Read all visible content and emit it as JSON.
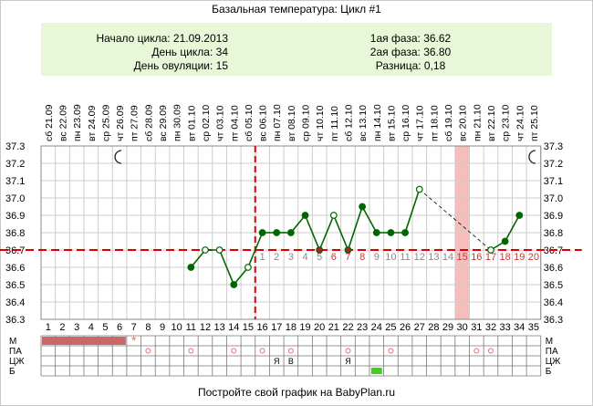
{
  "title": "Базальная температура: Цикл #1",
  "info": {
    "left": [
      "Начало цикла: 21.09.2013",
      "День цикла: 34",
      "День овуляции: 15"
    ],
    "right": [
      "1ая фаза: 36.62",
      "2ая фаза: 36.80",
      "Разница: 0,18"
    ]
  },
  "footer": "Постройте свой график на BabyPlan.ru",
  "colors": {
    "grid": "#cccccc",
    "line": "#006600",
    "point": "#006600",
    "ovulation_line": "#dd0000",
    "coverline": "#dd0000",
    "period_bar": "#c8686a",
    "highlight": "#f7bcbc",
    "phase_numbers": "#c0393b",
    "marker_pink": "#e07070",
    "marker_green": "#44cc22"
  },
  "icons": {
    "moon_left": "crescent-moon-icon",
    "moon_right": "crescent-moon-icon"
  },
  "chart_data": {
    "type": "line",
    "x_dates": [
      {
        "dow": "сб",
        "date": "21.09"
      },
      {
        "dow": "вс",
        "date": "22.09"
      },
      {
        "dow": "пн",
        "date": "23.09"
      },
      {
        "dow": "вт",
        "date": "24.09"
      },
      {
        "dow": "ср",
        "date": "25.09"
      },
      {
        "dow": "чт",
        "date": "26.09"
      },
      {
        "dow": "пт",
        "date": "27.09"
      },
      {
        "dow": "сб",
        "date": "28.09"
      },
      {
        "dow": "вс",
        "date": "29.09"
      },
      {
        "dow": "пн",
        "date": "30.09"
      },
      {
        "dow": "вт",
        "date": "01.10"
      },
      {
        "dow": "ср",
        "date": "02.10"
      },
      {
        "dow": "чт",
        "date": "03.10"
      },
      {
        "dow": "пт",
        "date": "04.10"
      },
      {
        "dow": "сб",
        "date": "05.10"
      },
      {
        "dow": "вс",
        "date": "06.10"
      },
      {
        "dow": "пн",
        "date": "07.10"
      },
      {
        "dow": "вт",
        "date": "08.10"
      },
      {
        "dow": "ср",
        "date": "09.10"
      },
      {
        "dow": "чт",
        "date": "10.10"
      },
      {
        "dow": "пт",
        "date": "11.10"
      },
      {
        "dow": "сб",
        "date": "12.10"
      },
      {
        "dow": "вс",
        "date": "13.10"
      },
      {
        "dow": "пн",
        "date": "14.10"
      },
      {
        "dow": "вт",
        "date": "15.10"
      },
      {
        "dow": "ср",
        "date": "16.10"
      },
      {
        "dow": "чт",
        "date": "17.10"
      },
      {
        "dow": "пт",
        "date": "18.10"
      },
      {
        "dow": "сб",
        "date": "19.10"
      },
      {
        "dow": "вс",
        "date": "20.10"
      },
      {
        "dow": "пн",
        "date": "21.10"
      },
      {
        "dow": "вт",
        "date": "22.10"
      },
      {
        "dow": "ср",
        "date": "23.10"
      },
      {
        "dow": "чт",
        "date": "24.10"
      },
      {
        "dow": "пт",
        "date": "25.10"
      }
    ],
    "cycle_days": [
      1,
      2,
      3,
      4,
      5,
      6,
      7,
      8,
      9,
      10,
      11,
      12,
      13,
      14,
      15,
      16,
      17,
      18,
      19,
      20,
      21,
      22,
      23,
      24,
      25,
      26,
      27,
      28,
      29,
      30,
      31,
      32,
      33,
      34,
      35
    ],
    "ylim": [
      36.3,
      37.3
    ],
    "y_ticks": [
      "36.3",
      "36.4",
      "36.5",
      "36.6",
      "36.7",
      "36.8",
      "36.9",
      "37.0",
      "37.1",
      "37.2",
      "37.3"
    ],
    "series": [
      {
        "points": [
          {
            "day": 11,
            "temp": 36.6,
            "style": "filled"
          },
          {
            "day": 12,
            "temp": 36.7,
            "style": "hollow"
          },
          {
            "day": 13,
            "temp": 36.7,
            "style": "hollow"
          },
          {
            "day": 14,
            "temp": 36.5,
            "style": "filled"
          },
          {
            "day": 15,
            "temp": 36.6,
            "style": "hollow"
          },
          {
            "day": 16,
            "temp": 36.8,
            "style": "filled"
          },
          {
            "day": 17,
            "temp": 36.8,
            "style": "filled"
          },
          {
            "day": 18,
            "temp": 36.8,
            "style": "filled"
          },
          {
            "day": 19,
            "temp": 36.9,
            "style": "filled"
          },
          {
            "day": 20,
            "temp": 36.7,
            "style": "red"
          },
          {
            "day": 21,
            "temp": 36.9,
            "style": "hollow"
          },
          {
            "day": 22,
            "temp": 36.7,
            "style": "red"
          },
          {
            "day": 23,
            "temp": 36.95,
            "style": "filled"
          },
          {
            "day": 24,
            "temp": 36.8,
            "style": "filled"
          },
          {
            "day": 25,
            "temp": 36.8,
            "style": "filled"
          },
          {
            "day": 26,
            "temp": 36.8,
            "style": "filled"
          },
          {
            "day": 27,
            "temp": 37.05,
            "style": "hollow"
          },
          {
            "day": 32,
            "temp": 36.7,
            "style": "hollow"
          },
          {
            "day": 33,
            "temp": 36.75,
            "style": "filled"
          },
          {
            "day": 34,
            "temp": 36.9,
            "style": "filled"
          }
        ]
      }
    ],
    "dashed_gap": {
      "from_day": 27,
      "to_day": 32
    },
    "coverline": 36.7,
    "ovulation_day": 15,
    "highlight_day": 30,
    "phase2_numbers": [
      1,
      2,
      3,
      4,
      5,
      6,
      7,
      8,
      9,
      10,
      11,
      12,
      13,
      14,
      15,
      16,
      17,
      18,
      19,
      20
    ],
    "phase2_red_numbers": [
      6,
      7,
      8,
      15,
      16,
      17,
      18,
      19,
      20
    ],
    "moon_days": [
      6,
      35
    ],
    "grid": true,
    "legend_rows": [
      "М",
      "ПА",
      "ЦЖ",
      "Б"
    ],
    "markers": {
      "m_bar_days": [
        1,
        2,
        3,
        4,
        5,
        6
      ],
      "m_star_day": 7,
      "pa_days": [
        8,
        11,
        14,
        16,
        18,
        22,
        25,
        31,
        32
      ],
      "czh_labels": [
        {
          "day": 17,
          "text": "Я"
        },
        {
          "day": 18,
          "text": "В"
        },
        {
          "day": 22,
          "text": "Я"
        }
      ],
      "b_days": [
        24
      ]
    }
  }
}
